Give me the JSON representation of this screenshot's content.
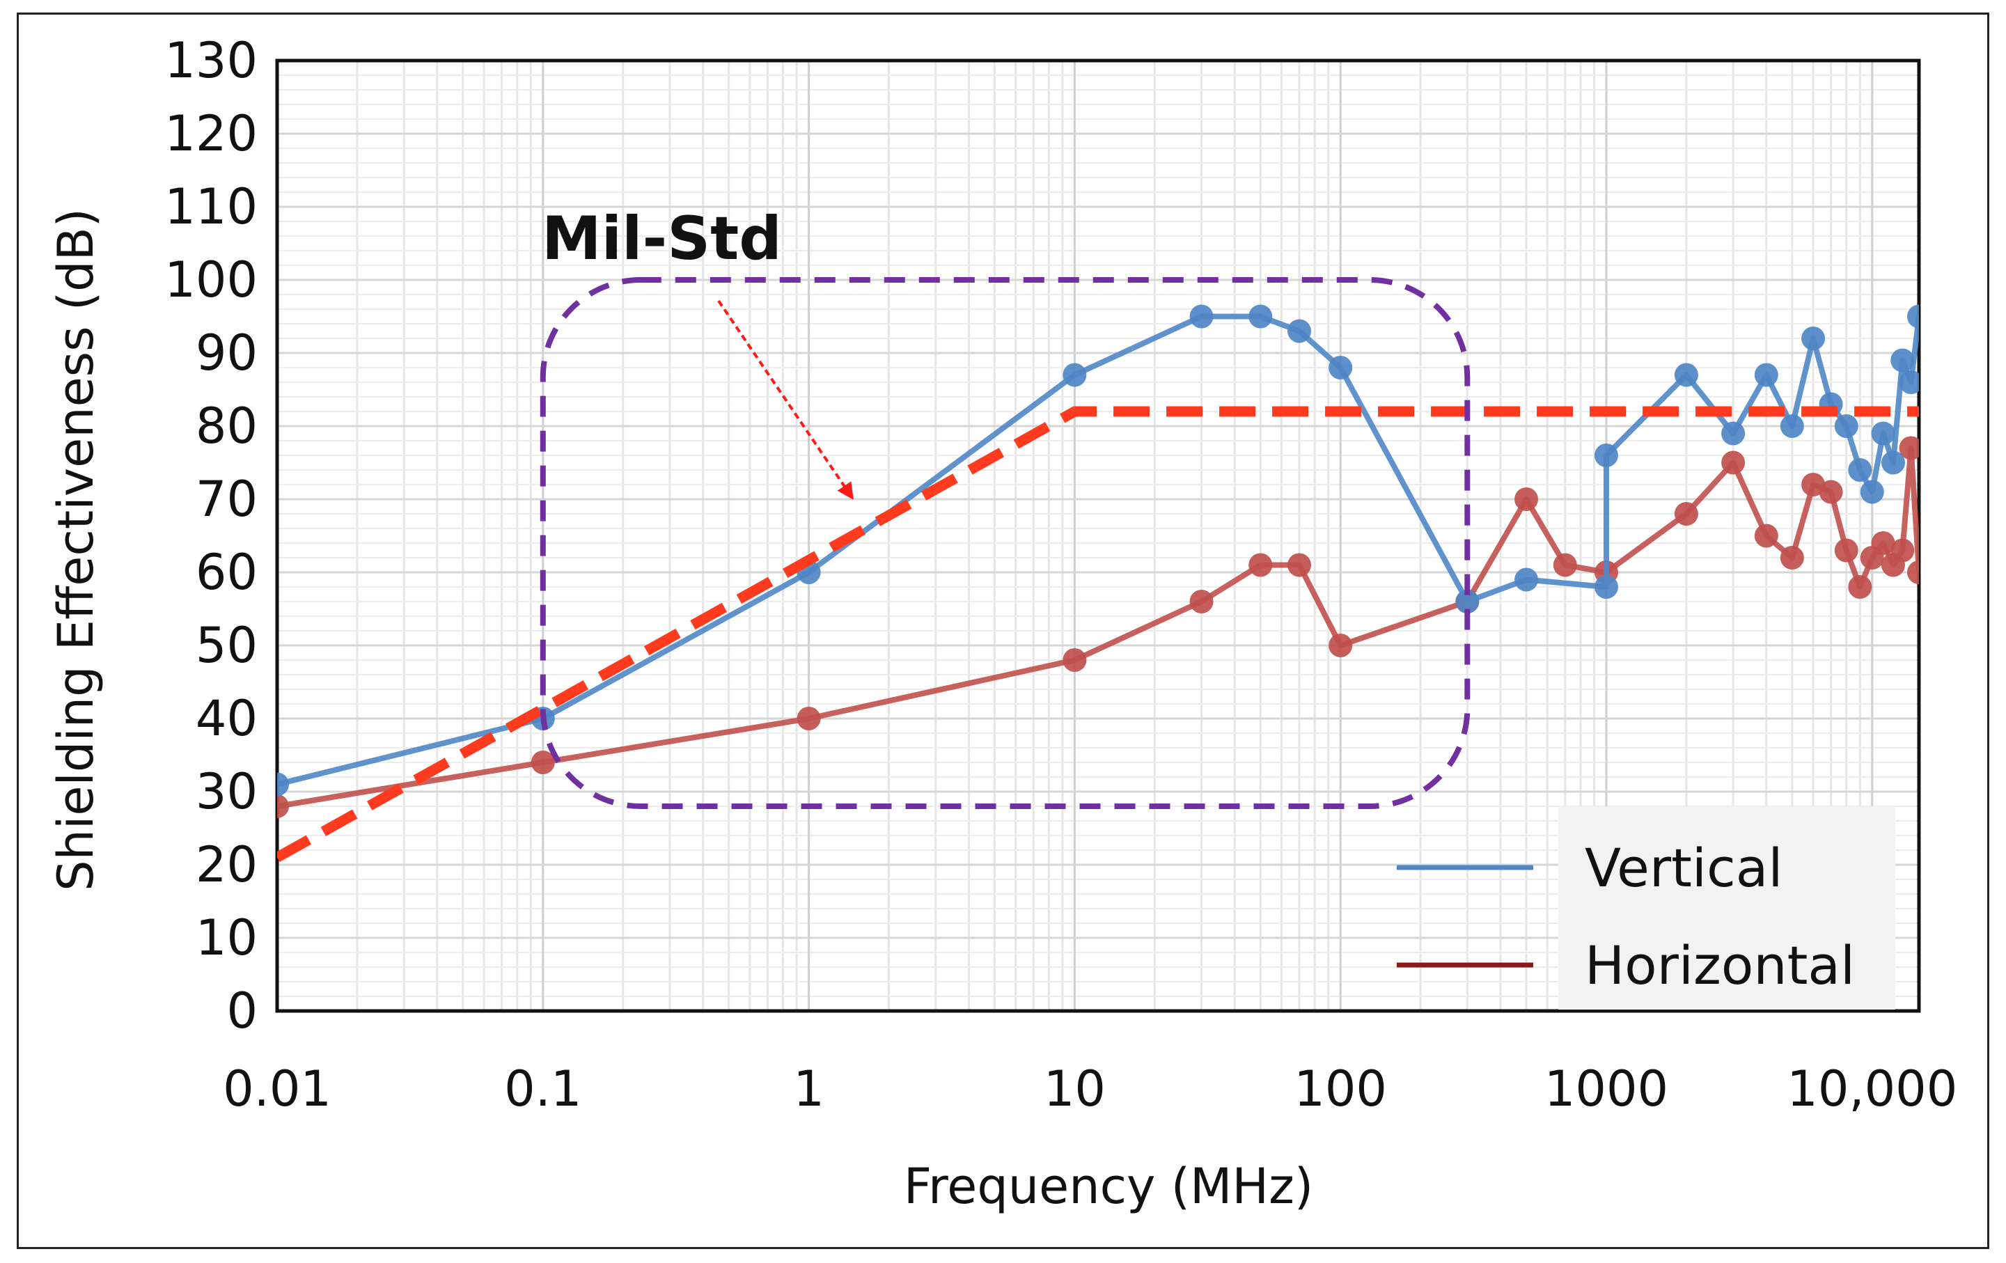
{
  "chart_data": {
    "type": "line",
    "title": "",
    "xlabel": "Frequency (MHz)",
    "ylabel": "Shielding Effectiveness (dB)",
    "xscale": "log",
    "xlim": [
      0.01,
      15000
    ],
    "ylim": [
      0,
      130
    ],
    "grid": true,
    "x_ticks": [
      0.01,
      0.1,
      1,
      10,
      100,
      1000,
      10000
    ],
    "x_tick_labels": [
      "0.01",
      "0.1",
      "1",
      "10",
      "100",
      "1000",
      "10,000"
    ],
    "y_ticks": [
      0,
      10,
      20,
      30,
      40,
      50,
      60,
      70,
      80,
      90,
      100,
      110,
      120,
      130
    ],
    "y_tick_labels": [
      "0",
      "10",
      "20",
      "30",
      "40",
      "50",
      "60",
      "70",
      "80",
      "90",
      "100",
      "110",
      "120",
      "130"
    ],
    "legend": {
      "position": "bottom-right",
      "entries": [
        "Vertical",
        "Horizontal"
      ]
    },
    "series": [
      {
        "name": "Vertical",
        "color": "#4f86c6",
        "x": [
          0.01,
          0.1,
          1,
          10,
          30,
          50,
          70,
          100,
          300,
          500,
          1000,
          1000,
          2000,
          3000,
          4000,
          5000,
          6000,
          7000,
          8000,
          9000,
          10000,
          11000,
          12000,
          13000,
          14000,
          15000
        ],
        "y": [
          31,
          40,
          60,
          87,
          95,
          95,
          93,
          88,
          56,
          59,
          58,
          76,
          87,
          79,
          87,
          80,
          92,
          83,
          80,
          74,
          71,
          79,
          75,
          89,
          86,
          95
        ]
      },
      {
        "name": "Horizontal",
        "color": "#c0504d",
        "x": [
          0.01,
          0.1,
          1,
          10,
          30,
          50,
          70,
          100,
          300,
          500,
          700,
          1000,
          2000,
          3000,
          4000,
          5000,
          6000,
          7000,
          8000,
          9000,
          10000,
          11000,
          12000,
          13000,
          14000,
          15000
        ],
        "y": [
          28,
          34,
          40,
          48,
          56,
          61,
          61,
          50,
          56,
          70,
          61,
          60,
          68,
          75,
          65,
          62,
          72,
          71,
          63,
          58,
          62,
          64,
          61,
          63,
          77,
          60
        ]
      },
      {
        "name": "Mil-Std",
        "color": "#ff3b1f",
        "style": "dashed",
        "x": [
          0.01,
          10,
          15000
        ],
        "y": [
          21,
          82,
          82
        ]
      }
    ],
    "annotations": [
      {
        "text": "Mil-Std",
        "points_to": "Mil-Std line",
        "region_x": [
          0.1,
          300
        ],
        "region_y": [
          28,
          100
        ]
      }
    ]
  }
}
